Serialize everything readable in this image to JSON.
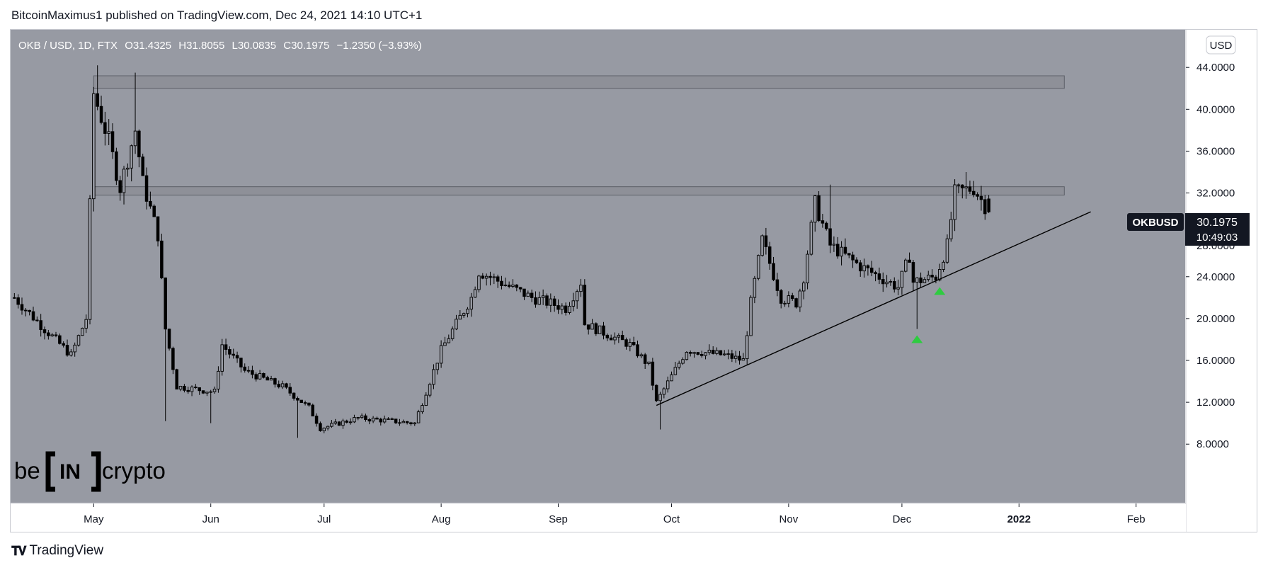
{
  "header": {
    "publisher": "BitcoinMaximus1 published on TradingView.com, Dec 24, 2021 14:10 UTC+1"
  },
  "legend": {
    "symbol": "OKB / USD, 1D, FTX",
    "open_label": "O",
    "open": "31.4325",
    "high_label": "H",
    "high": "31.8055",
    "low_label": "L",
    "low": "30.0835",
    "close_label": "C",
    "close": "30.1975",
    "change": "−1.2350 (−3.93%)"
  },
  "currency_button": "USD",
  "price_tag": {
    "symbol": "OKBUSD",
    "price": "30.1975",
    "countdown": "10:49:03"
  },
  "watermark": {
    "left": "be",
    "middle": "IN",
    "right": "crypto"
  },
  "footer": {
    "brand": "TradingView"
  },
  "colors": {
    "chart_bg": "#979aa3",
    "candle": "#000000",
    "arrow": "#2ecc40",
    "zone_fill": "#8c8e96",
    "zone_stroke": "#5d6068",
    "axis_bg": "#ffffff"
  },
  "icons": {
    "footer_logo": "tradingview-logo-icon",
    "arrow": "up-arrow-icon"
  },
  "chart_data": {
    "type": "candlestick",
    "title": "OKB / USD, 1D, FTX",
    "y_axis": {
      "ticks": [
        "44.0000",
        "40.0000",
        "36.0000",
        "32.0000",
        "24.0000",
        "20.0000",
        "16.0000",
        "12.0000",
        "8.0000"
      ],
      "tick_values": [
        44,
        40,
        36,
        32,
        24,
        20,
        16,
        12,
        8
      ],
      "range": [
        2.4,
        47.6
      ],
      "hidden_tick_partial": "28.0000"
    },
    "x_axis": {
      "ticks": [
        "May",
        "Jun",
        "Jul",
        "Aug",
        "Sep",
        "Oct",
        "Nov",
        "Dec",
        "2022",
        "Feb"
      ],
      "tick_dates": [
        "2021-05-01",
        "2021-06-01",
        "2021-07-01",
        "2021-08-01",
        "2021-09-01",
        "2021-10-01",
        "2021-11-01",
        "2021-12-01",
        "2022-01-01",
        "2022-02-01"
      ],
      "range": [
        "2021-04-09",
        "2022-02-14"
      ]
    },
    "series_anchors": [
      {
        "date": "2021-04-10",
        "price": 22.0
      },
      {
        "date": "2021-04-18",
        "price": 19.0
      },
      {
        "date": "2021-04-25",
        "price": 16.5
      },
      {
        "date": "2021-04-29",
        "price": 20.0
      },
      {
        "date": "2021-05-01",
        "price": 41.5
      },
      {
        "date": "2021-05-05",
        "price": 37.0
      },
      {
        "date": "2021-05-08",
        "price": 32.5
      },
      {
        "date": "2021-05-12",
        "price": 38.0
      },
      {
        "date": "2021-05-14",
        "price": 33.0
      },
      {
        "date": "2021-05-18",
        "price": 28.0
      },
      {
        "date": "2021-05-20",
        "price": 19.0
      },
      {
        "date": "2021-05-23",
        "price": 13.5
      },
      {
        "date": "2021-06-02",
        "price": 13.0
      },
      {
        "date": "2021-06-04",
        "price": 17.5
      },
      {
        "date": "2021-06-10",
        "price": 15.0
      },
      {
        "date": "2021-06-20",
        "price": 13.5
      },
      {
        "date": "2021-06-27",
        "price": 11.5
      },
      {
        "date": "2021-06-30",
        "price": 9.5
      },
      {
        "date": "2021-07-10",
        "price": 10.5
      },
      {
        "date": "2021-07-25",
        "price": 10.0
      },
      {
        "date": "2021-08-01",
        "price": 17.0
      },
      {
        "date": "2021-08-09",
        "price": 22.0
      },
      {
        "date": "2021-08-11",
        "price": 24.5
      },
      {
        "date": "2021-08-25",
        "price": 22.0
      },
      {
        "date": "2021-09-03",
        "price": 21.0
      },
      {
        "date": "2021-09-07",
        "price": 23.5
      },
      {
        "date": "2021-09-08",
        "price": 19.5
      },
      {
        "date": "2021-09-20",
        "price": 17.5
      },
      {
        "date": "2021-09-25",
        "price": 15.5
      },
      {
        "date": "2021-09-27",
        "price": 12.0
      },
      {
        "date": "2021-10-05",
        "price": 17.0
      },
      {
        "date": "2021-10-15",
        "price": 16.5
      },
      {
        "date": "2021-10-20",
        "price": 16.0
      },
      {
        "date": "2021-10-22",
        "price": 21.5
      },
      {
        "date": "2021-10-25",
        "price": 27.5
      },
      {
        "date": "2021-10-30",
        "price": 22.0
      },
      {
        "date": "2021-11-03",
        "price": 21.5
      },
      {
        "date": "2021-11-05",
        "price": 24.0
      },
      {
        "date": "2021-11-08",
        "price": 31.0
      },
      {
        "date": "2021-11-12",
        "price": 27.0
      },
      {
        "date": "2021-11-20",
        "price": 25.0
      },
      {
        "date": "2021-11-30",
        "price": 23.0
      },
      {
        "date": "2021-12-03",
        "price": 26.0
      },
      {
        "date": "2021-12-04",
        "price": 23.5
      },
      {
        "date": "2021-12-10",
        "price": 24.0
      },
      {
        "date": "2021-12-13",
        "price": 27.0
      },
      {
        "date": "2021-12-15",
        "price": 32.0
      },
      {
        "date": "2021-12-20",
        "price": 32.5
      },
      {
        "date": "2021-12-24",
        "price": 30.1975
      }
    ],
    "last_candle": {
      "date": "2021-12-24",
      "open": 31.4325,
      "high": 31.8055,
      "low": 30.0835,
      "close": 30.1975
    },
    "resistance_zones": [
      {
        "price_low": 42.0,
        "price_high": 43.2,
        "start": "2021-05-01",
        "end": "2022-01-13"
      },
      {
        "price_low": 31.8,
        "price_high": 32.6,
        "start": "2021-05-01",
        "end": "2022-01-13"
      }
    ],
    "ascending_support": {
      "start": {
        "date": "2021-09-27",
        "price": 11.7
      },
      "end": {
        "date": "2022-01-20",
        "price": 30.2
      }
    },
    "arrows": [
      {
        "date": "2021-12-05",
        "price": 18.0
      },
      {
        "date": "2021-12-11",
        "price": 22.6
      }
    ],
    "extreme_wicks": [
      {
        "date": "2021-05-02",
        "high": 44.2
      },
      {
        "date": "2021-05-12",
        "high": 43.5
      },
      {
        "date": "2021-05-20",
        "low": 10.2
      },
      {
        "date": "2021-06-01",
        "low": 10.0
      },
      {
        "date": "2021-06-24",
        "low": 8.6
      },
      {
        "date": "2021-09-28",
        "low": 9.4
      },
      {
        "date": "2021-11-12",
        "high": 32.8
      },
      {
        "date": "2021-12-05",
        "low": 19.0
      },
      {
        "date": "2021-12-18",
        "high": 34.0
      }
    ]
  }
}
